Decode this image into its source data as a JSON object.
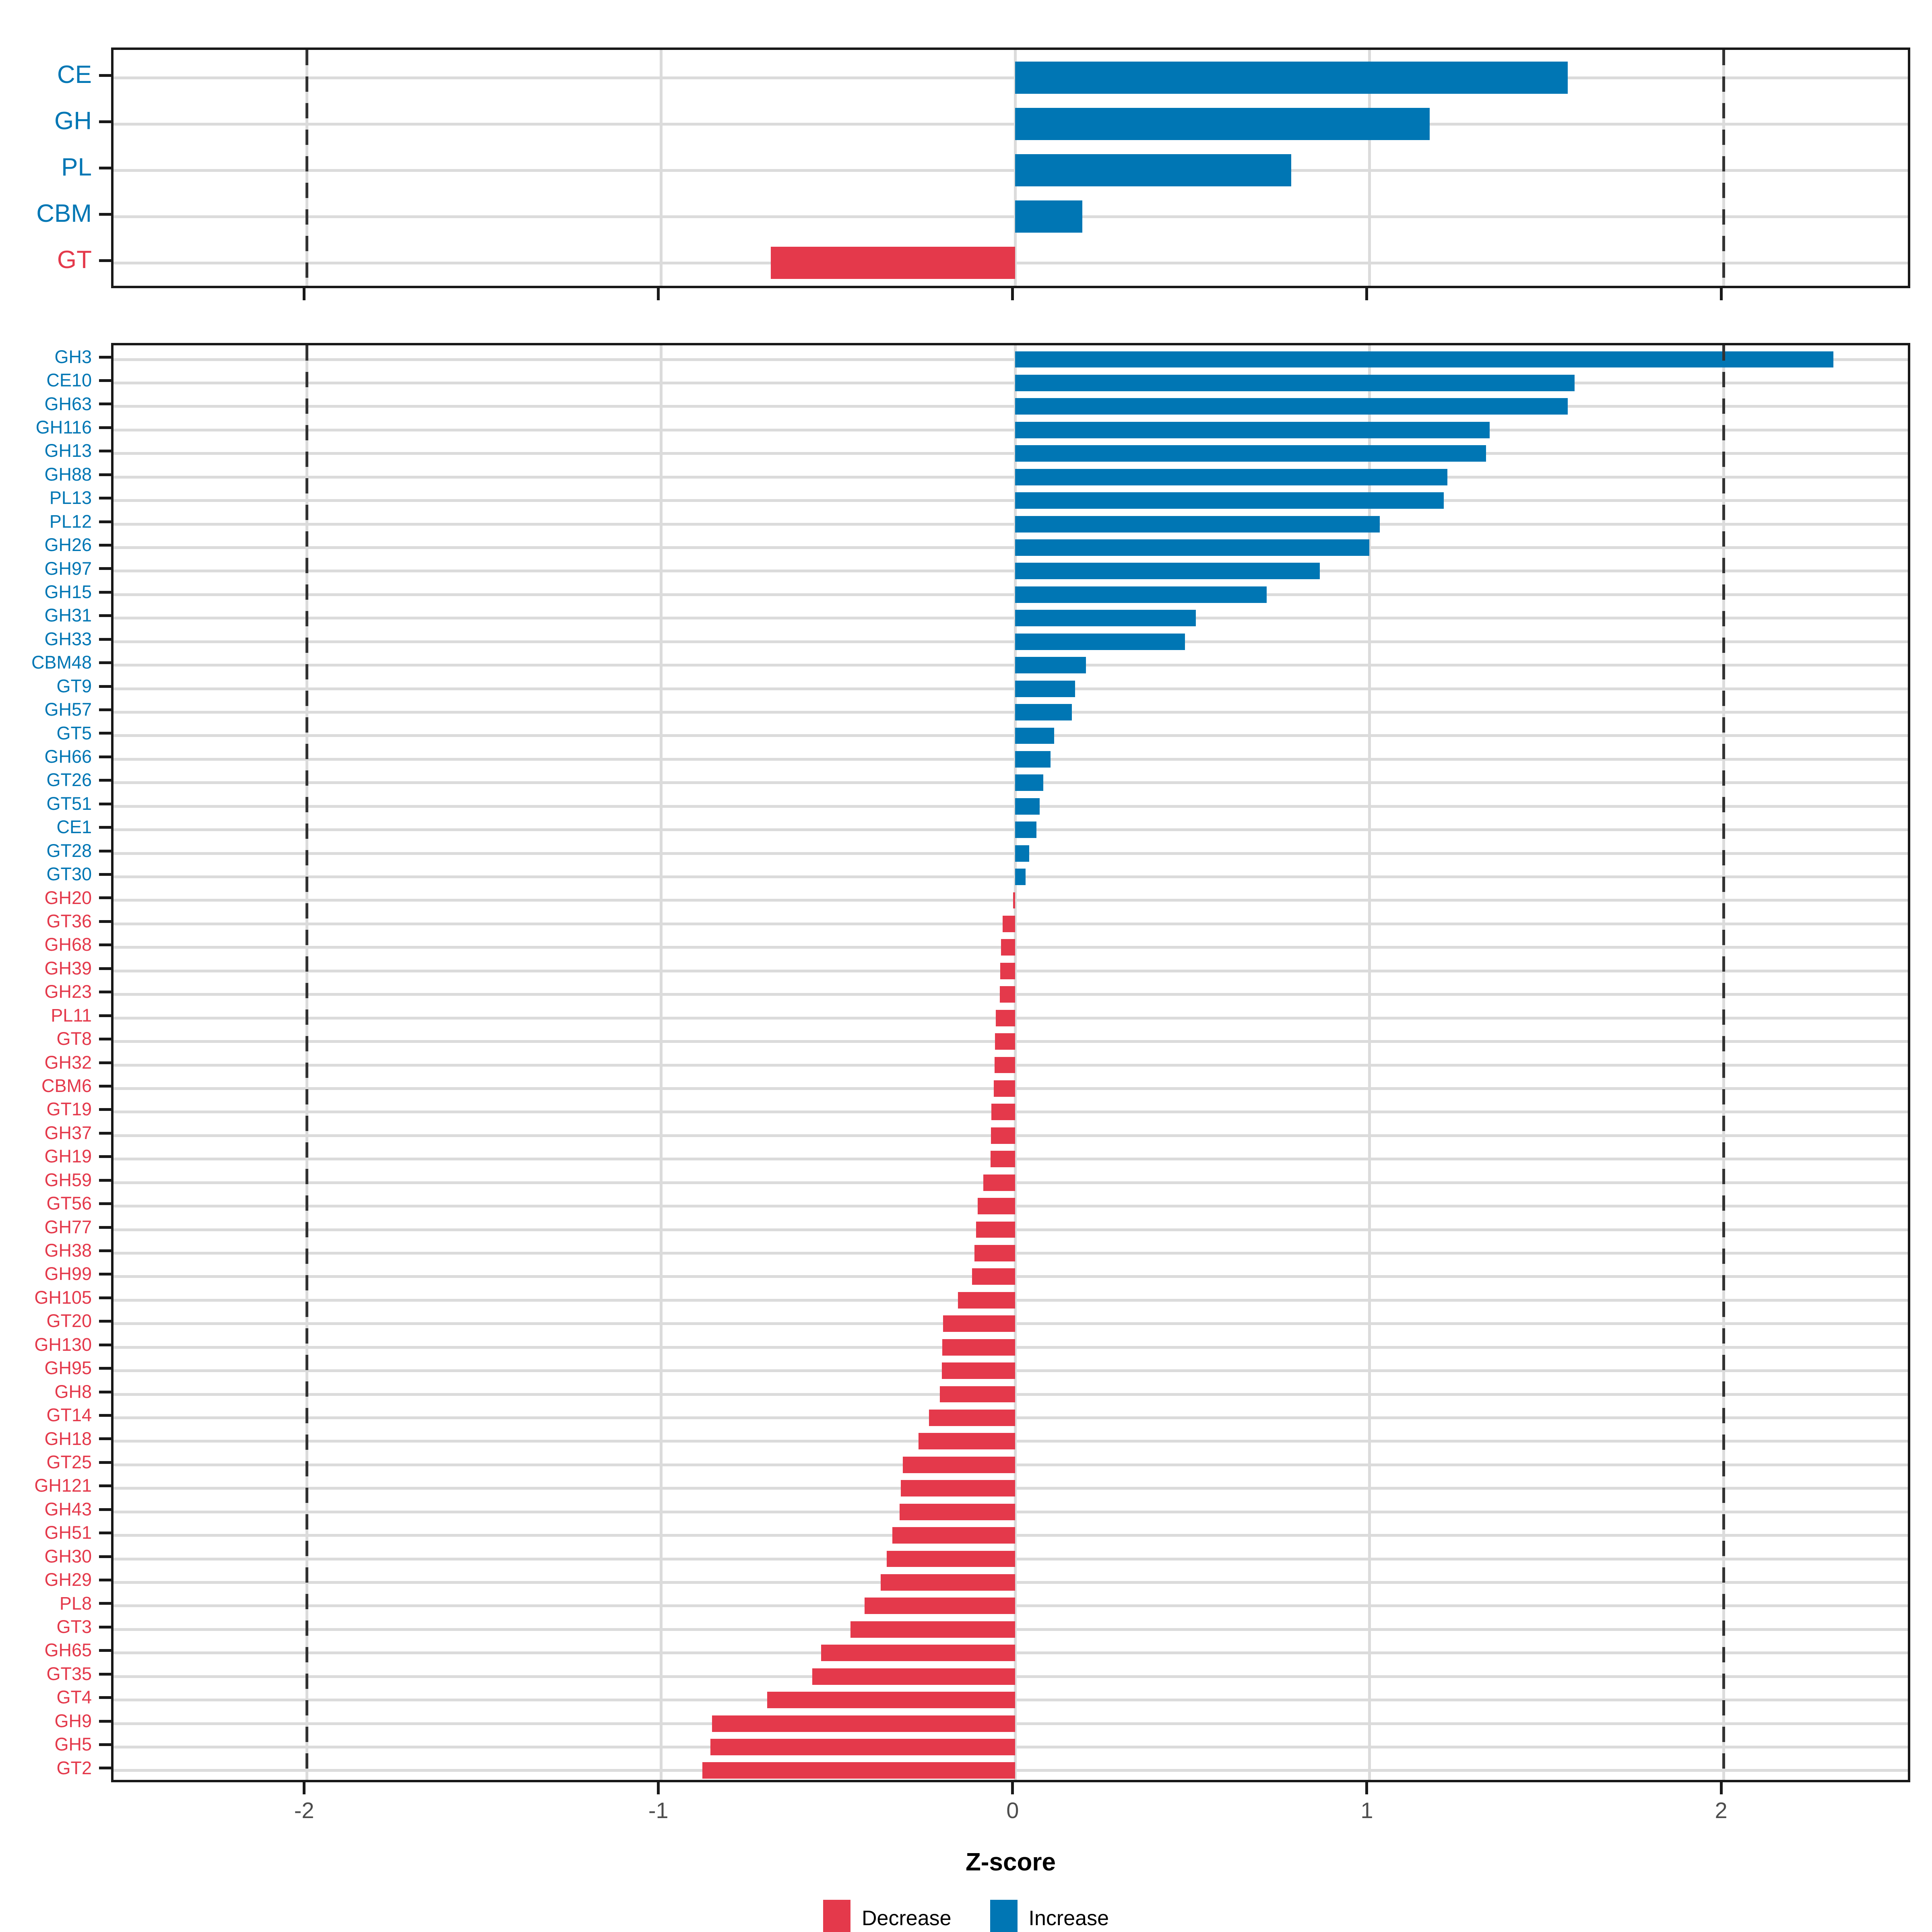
{
  "figure": {
    "axis": {
      "x_title": "Z-score",
      "x_ticks": [
        -2,
        -1,
        0,
        1,
        2
      ],
      "x_tick_labels": [
        "-2",
        "-1",
        "0",
        "1",
        "2"
      ],
      "x_min": -2.545,
      "x_max": 2.534,
      "dashed_reference_lines": [
        -2,
        2
      ]
    },
    "colors": {
      "increase": "#0076B4",
      "decrease": "#E4394B",
      "grid": "#DBDBDB",
      "panel_border": "#191919",
      "dashed_line": "#333333",
      "tick_text": "#4D4D4D",
      "axis_title": "#000000"
    },
    "legend": {
      "items": [
        {
          "label": "Decrease",
          "key": "decrease"
        },
        {
          "label": "Increase",
          "key": "increase"
        }
      ]
    }
  },
  "chart_data": [
    {
      "type": "bar",
      "orientation": "horizontal",
      "panel": "cazyme-families",
      "xlabel": "Z-score",
      "xlim": [
        -2.545,
        2.534
      ],
      "grid": true,
      "categories": [
        "CE",
        "GH",
        "PL",
        "CBM",
        "GT"
      ],
      "values": [
        1.56,
        1.17,
        0.78,
        0.19,
        -0.69
      ],
      "directions": [
        "increase",
        "increase",
        "increase",
        "increase",
        "decrease"
      ]
    },
    {
      "type": "bar",
      "orientation": "horizontal",
      "panel": "cazyme-subfamilies",
      "xlabel": "Z-score",
      "xlim": [
        -2.545,
        2.534
      ],
      "grid": true,
      "categories": [
        "GH3",
        "CE10",
        "GH63",
        "GH116",
        "GH13",
        "GH88",
        "PL13",
        "PL12",
        "GH26",
        "GH97",
        "GH15",
        "GH31",
        "GH33",
        "CBM48",
        "GT9",
        "GH57",
        "GT5",
        "GH66",
        "GT26",
        "GT51",
        "CE1",
        "GT28",
        "GT30",
        "GH20",
        "GT36",
        "GH68",
        "GH39",
        "GH23",
        "PL11",
        "GT8",
        "GH32",
        "CBM6",
        "GT19",
        "GH37",
        "GH19",
        "GH59",
        "GT56",
        "GH77",
        "GH38",
        "GH99",
        "GH105",
        "GT20",
        "GH130",
        "GH95",
        "GH8",
        "GT14",
        "GH18",
        "GT25",
        "GH121",
        "GH43",
        "GH51",
        "GH30",
        "GH29",
        "PL8",
        "GT3",
        "GH65",
        "GT35",
        "GT4",
        "GH9",
        "GH5",
        "GT2"
      ],
      "values": [
        2.31,
        1.58,
        1.56,
        1.34,
        1.33,
        1.22,
        1.21,
        1.03,
        1.0,
        0.86,
        0.71,
        0.51,
        0.48,
        0.2,
        0.17,
        0.16,
        0.11,
        0.1,
        0.08,
        0.07,
        0.06,
        0.04,
        0.03,
        -0.005,
        -0.035,
        -0.04,
        -0.042,
        -0.043,
        -0.054,
        -0.057,
        -0.058,
        -0.06,
        -0.067,
        -0.068,
        -0.069,
        -0.09,
        -0.106,
        -0.11,
        -0.115,
        -0.121,
        -0.161,
        -0.203,
        -0.205,
        -0.207,
        -0.212,
        -0.243,
        -0.272,
        -0.317,
        -0.322,
        -0.326,
        -0.346,
        -0.362,
        -0.379,
        -0.425,
        -0.464,
        -0.547,
        -0.572,
        -0.7,
        -0.855,
        -0.86,
        -0.883
      ],
      "directions": [
        "increase",
        "increase",
        "increase",
        "increase",
        "increase",
        "increase",
        "increase",
        "increase",
        "increase",
        "increase",
        "increase",
        "increase",
        "increase",
        "increase",
        "increase",
        "increase",
        "increase",
        "increase",
        "increase",
        "increase",
        "increase",
        "increase",
        "increase",
        "decrease",
        "decrease",
        "decrease",
        "decrease",
        "decrease",
        "decrease",
        "decrease",
        "decrease",
        "decrease",
        "decrease",
        "decrease",
        "decrease",
        "decrease",
        "decrease",
        "decrease",
        "decrease",
        "decrease",
        "decrease",
        "decrease",
        "decrease",
        "decrease",
        "decrease",
        "decrease",
        "decrease",
        "decrease",
        "decrease",
        "decrease",
        "decrease",
        "decrease",
        "decrease",
        "decrease",
        "decrease",
        "decrease",
        "decrease",
        "decrease",
        "decrease",
        "decrease",
        "decrease"
      ]
    }
  ]
}
